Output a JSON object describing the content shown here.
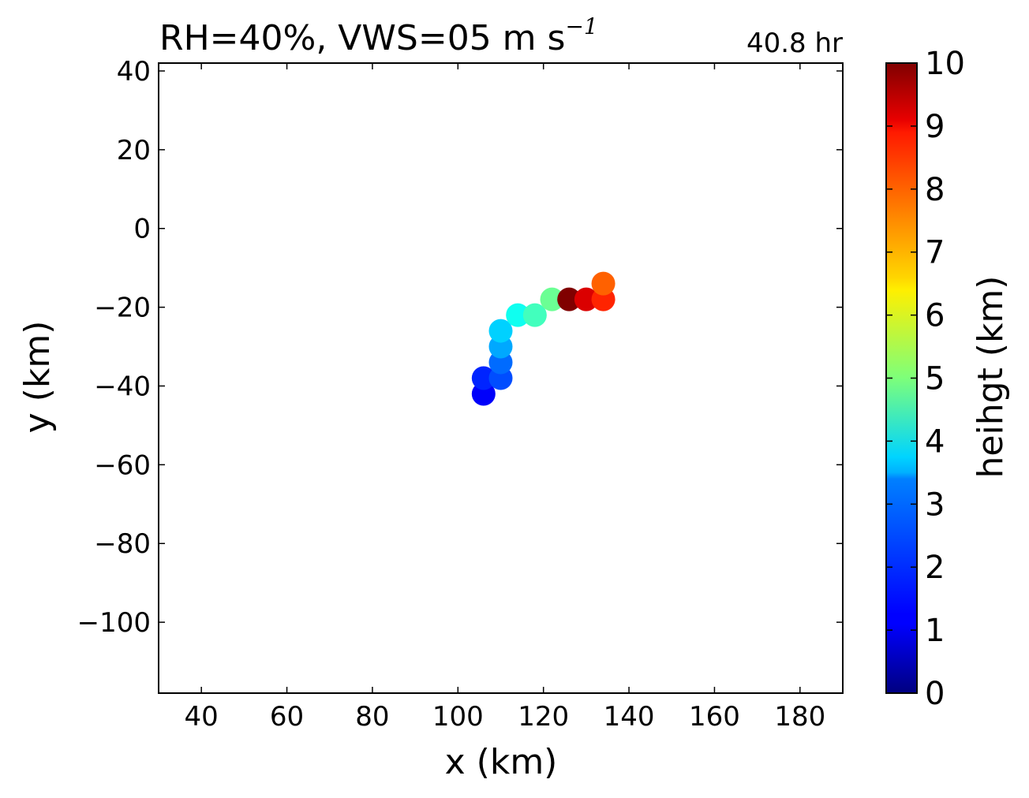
{
  "chart_data": {
    "type": "scatter",
    "title_main": "RH=40%, VWS=05 m s",
    "title_sup": "−1",
    "time_label": "40.8 hr",
    "time_label_color": "#0000e6",
    "xlabel": "x (km)",
    "ylabel": "y (km)",
    "colorbar_label": "heihgt (km)",
    "xlim": [
      30,
      190
    ],
    "ylim": [
      -118,
      42
    ],
    "xticks": [
      40,
      60,
      80,
      100,
      120,
      140,
      160,
      180
    ],
    "yticks": [
      40,
      20,
      0,
      -20,
      -40,
      -60,
      -80,
      -100
    ],
    "colorbar_range": [
      0,
      10
    ],
    "colorbar_ticks": [
      0,
      1,
      2,
      3,
      4,
      5,
      6,
      7,
      8,
      9,
      10
    ],
    "colormap": "jet",
    "grid": false,
    "points": [
      {
        "x": 106,
        "y": -42,
        "height": 1.2
      },
      {
        "x": 106,
        "y": -38,
        "height": 1.6
      },
      {
        "x": 110,
        "y": -38,
        "height": 2.0
      },
      {
        "x": 110,
        "y": -34,
        "height": 2.3
      },
      {
        "x": 110,
        "y": -30,
        "height": 2.9
      },
      {
        "x": 110,
        "y": -26,
        "height": 3.3
      },
      {
        "x": 114,
        "y": -22,
        "height": 3.9
      },
      {
        "x": 118,
        "y": -22,
        "height": 4.4
      },
      {
        "x": 122,
        "y": -18,
        "height": 4.8
      },
      {
        "x": 126,
        "y": -18,
        "height": 10.0
      },
      {
        "x": 130,
        "y": -18,
        "height": 9.1
      },
      {
        "x": 134,
        "y": -18,
        "height": 8.4
      },
      {
        "x": 134,
        "y": -14,
        "height": 7.8
      }
    ]
  }
}
